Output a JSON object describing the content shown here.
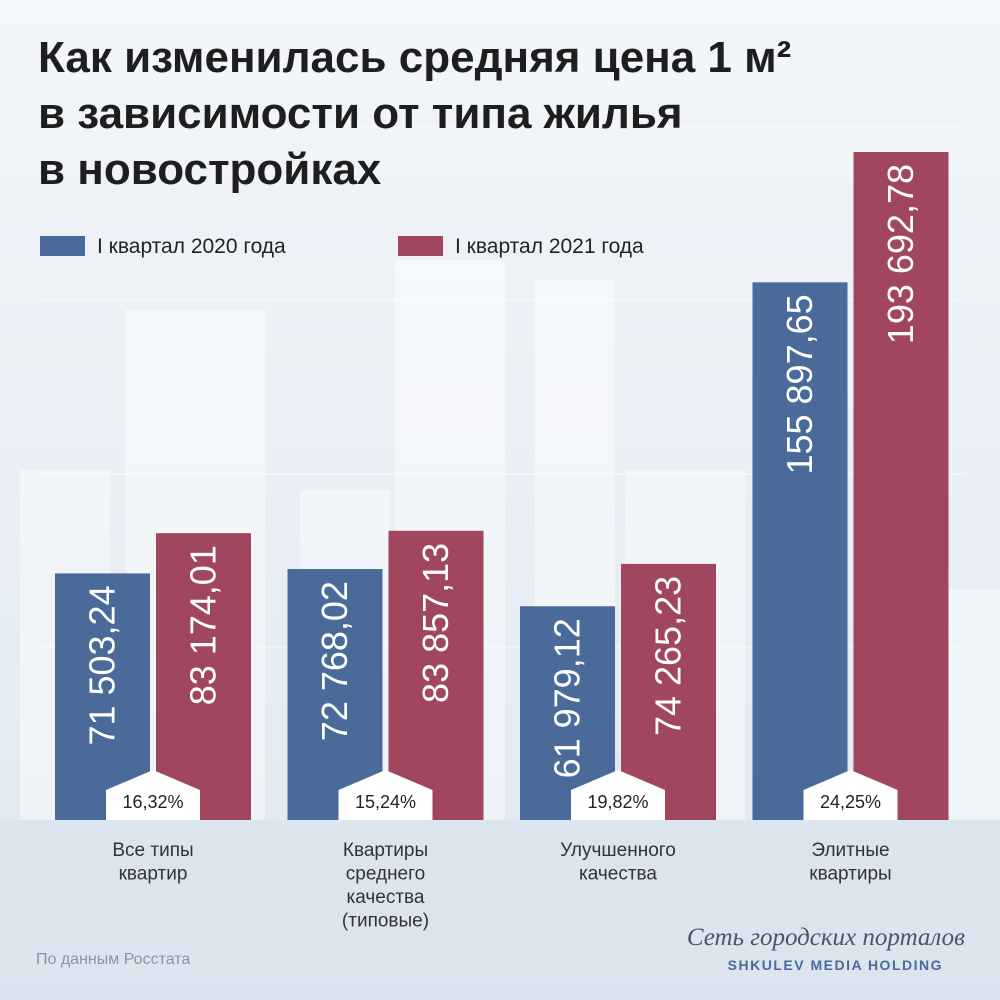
{
  "chart_data": {
    "type": "bar",
    "title": "Как изменилась средняя цена 1 м²\nв зависимости от типа жилья\nв новостройках",
    "categories": [
      "Все типы\nквартир",
      "Квартиры\nсреднего\nкачества\n(типовые)",
      "Улучшенного\nкачества",
      "Элитные\nквартиры"
    ],
    "series": [
      {
        "name": "I квартал 2020 года",
        "color": "#4a6a9a",
        "values": [
          71503.24,
          72768.02,
          61979.12,
          155897.65
        ],
        "value_labels": [
          "71 503,24",
          "72 768,02",
          "61 979,12",
          "155 897,65"
        ]
      },
      {
        "name": "I квартал 2021 года",
        "color": "#a0465e",
        "values": [
          83174.01,
          83857.13,
          74265.23,
          193692.78
        ],
        "value_labels": [
          "83 174,01",
          "83 857,13",
          "74 265,23",
          "193 692,78"
        ]
      }
    ],
    "changes": {
      "values": [
        16.32,
        15.24,
        19.82,
        24.25
      ],
      "value_labels": [
        "16,32%",
        "15,24%",
        "19,82%",
        "24,25%"
      ]
    },
    "source": "По данным Росстата",
    "logo": {
      "tagline": "Сеть городских порталов",
      "name": "SHKULEV MEDIA HOLDING"
    }
  }
}
